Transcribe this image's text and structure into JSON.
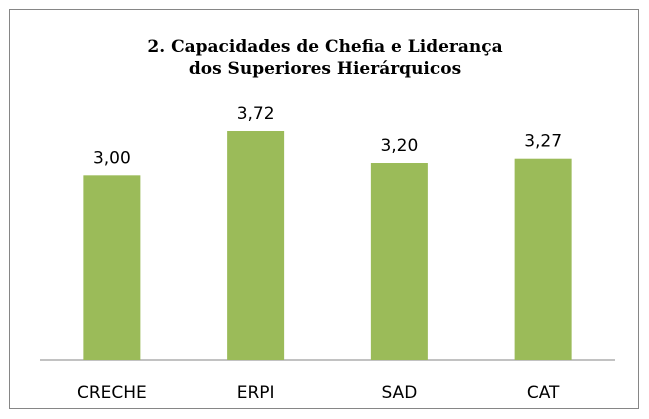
{
  "chart_data": {
    "type": "bar",
    "title": "2. Capacidades de Chefia e Liderança dos Superiores Hierárquicos",
    "categories": [
      "CRECHE",
      "ERPI",
      "SAD",
      "CAT"
    ],
    "values": [
      3.0,
      3.72,
      3.2,
      3.27
    ],
    "value_labels": [
      "3,00",
      "3,72",
      "3,20",
      "3,27"
    ],
    "color": "#9bbb59"
  }
}
